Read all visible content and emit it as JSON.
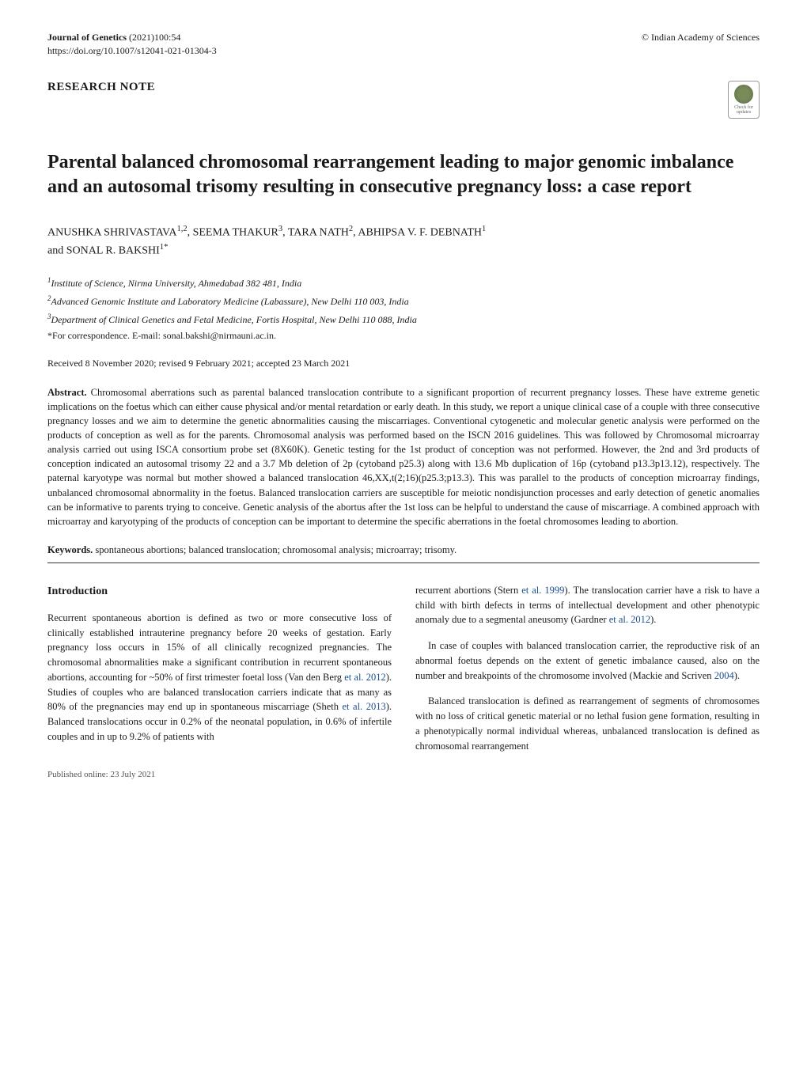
{
  "header": {
    "journal": "Journal of Genetics",
    "year_vol": " (2021)100:54",
    "publisher": "© Indian Academy of Sciences",
    "doi": "https://doi.org/10.1007/s12041-021-01304-3"
  },
  "article_type": "RESEARCH NOTE",
  "badge": {
    "label": "Check for updates"
  },
  "title": "Parental balanced chromosomal rearrangement leading to major genomic imbalance and an autosomal trisomy resulting in consecutive pregnancy loss: a case report",
  "authors_line1": "ANUSHKA SHRIVASTAVA",
  "authors_sup1": "1,2",
  "authors_line2": ", SEEMA THAKUR",
  "authors_sup2": "3",
  "authors_line3": ", TARA NATH",
  "authors_sup3": "2",
  "authors_line4": ", ABHIPSA V. F. DEBNATH",
  "authors_sup4": "1",
  "authors_line5": "and SONAL R. BAKSHI",
  "authors_sup5": "1*",
  "affiliations": {
    "a1_sup": "1",
    "a1": "Institute of Science, Nirma University, Ahmedabad 382 481, India",
    "a2_sup": "2",
    "a2": "Advanced Genomic Institute and Laboratory Medicine (Labassure), New Delhi 110 003, India",
    "a3_sup": "3",
    "a3": "Department of Clinical Genetics and Fetal Medicine, Fortis Hospital, New Delhi 110 088, India"
  },
  "correspondence": "*For correspondence. E-mail: sonal.bakshi@nirmauni.ac.in.",
  "dates": "Received 8 November 2020; revised 9 February 2021; accepted 23 March 2021",
  "abstract_label": "Abstract.",
  "abstract_text": "Chromosomal aberrations such as parental balanced translocation contribute to a significant proportion of recurrent pregnancy losses. These have extreme genetic implications on the foetus which can either cause physical and/or mental retardation or early death. In this study, we report a unique clinical case of a couple with three consecutive pregnancy losses and we aim to determine the genetic abnormalities causing the miscarriages. Conventional cytogenetic and molecular genetic analysis were performed on the products of conception as well as for the parents. Chromosomal analysis was performed based on the ISCN 2016 guidelines. This was followed by Chromosomal microarray analysis carried out using ISCA consortium probe set (8X60K). Genetic testing for the 1st product of conception was not performed. However, the 2nd and 3rd products of conception indicated an autosomal trisomy 22 and a 3.7 Mb deletion of 2p (cytoband p25.3) along with 13.6 Mb duplication of 16p (cytoband p13.3p13.12), respectively. The paternal karyotype was normal but mother showed a balanced translocation 46,XX,t(2;16)(p25.3;p13.3). This was parallel to the products of conception microarray findings, unbalanced chromosomal abnormality in the foetus. Balanced translocation carriers are susceptible for meiotic nondisjunction processes and early detection of genetic anomalies can be informative to parents trying to conceive. Genetic analysis of the abortus after the 1st loss can be helpful to understand the cause of miscarriage. A combined approach with microarray and karyotyping of the products of conception can be important to determine the specific aberrations in the foetal chromosomes leading to abortion.",
  "keywords_label": "Keywords.",
  "keywords_text": "spontaneous abortions; balanced translocation; chromosomal analysis; microarray; trisomy.",
  "body": {
    "intro_heading": "Introduction",
    "col1_p1a": "Recurrent spontaneous abortion is defined as two or more consecutive loss of clinically established intrauterine pregnancy before 20 weeks of gestation. Early pregnancy loss occurs in 15% of all clinically recognized pregnancies. The chromosomal abnormalities make a significant contribution in recurrent spontaneous abortions, accounting for ~50% of first trimester foetal loss (Van den Berg ",
    "col1_ref1": "et al. 2012",
    "col1_p1b": "). Studies of couples who are balanced translocation carriers indicate that as many as 80% of the pregnancies may end up in spontaneous miscarriage (Sheth ",
    "col1_ref2": "et al. 2013",
    "col1_p1c": "). Balanced translocations occur in 0.2% of the neonatal population, in 0.6% of infertile couples and in up to 9.2% of patients with",
    "col2_p1a": "recurrent abortions (Stern ",
    "col2_ref1": "et al. 1999",
    "col2_p1b": "). The translocation carrier have a risk to have a child with birth defects in terms of intellectual development and other phenotypic anomaly due to a segmental aneusomy (Gardner ",
    "col2_ref2": "et al. 2012",
    "col2_p1c": ").",
    "col2_p2a": "In case of couples with balanced translocation carrier, the reproductive risk of an abnormal foetus depends on the extent of genetic imbalance caused, also on the number and breakpoints of the chromosome involved (Mackie and Scriven ",
    "col2_ref3": "2004",
    "col2_p2b": ").",
    "col2_p3": "Balanced translocation is defined as rearrangement of segments of chromosomes with no loss of critical genetic material or no lethal fusion gene formation, resulting in a phenotypically normal individual whereas, unbalanced translocation is defined as chromosomal rearrangement"
  },
  "footer": "Published online: 23 July 2021",
  "colors": {
    "text": "#1a1a1a",
    "bg": "#ffffff",
    "ref_link": "#1a4d8f",
    "footer": "#555555",
    "badge_border": "#999999",
    "badge_green_inner": "#7a8b5a",
    "badge_green_outer": "#5a6b4a"
  }
}
